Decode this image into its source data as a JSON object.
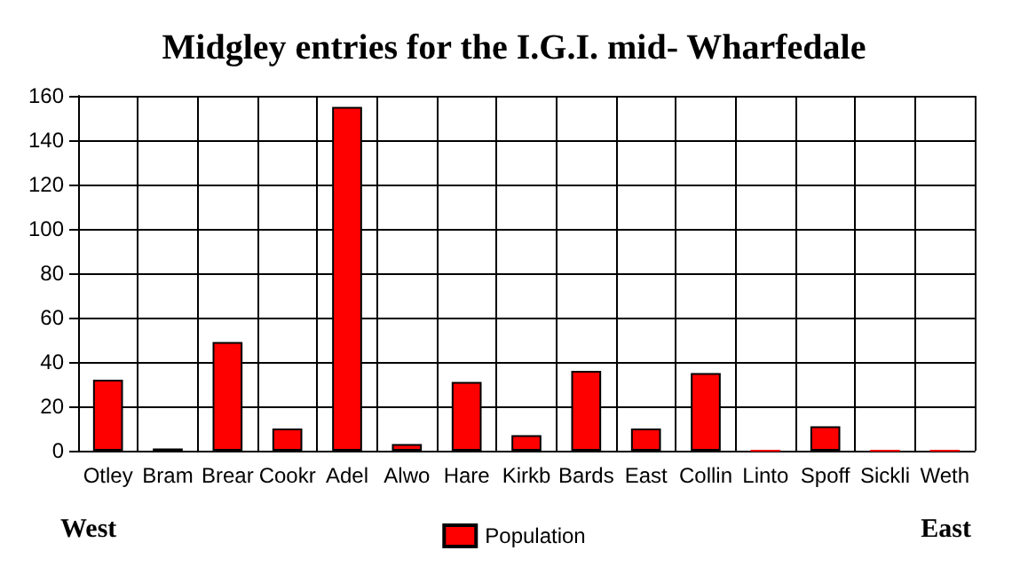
{
  "chart_data": {
    "type": "bar",
    "title": "Midgley entries for the I.G.I. mid- Wharfedale",
    "categories": [
      "Otley",
      "Bram",
      "Brear",
      "Cookr",
      "Adel",
      "Alwo",
      "Hare",
      "Kirkb",
      "Bards",
      "East",
      "Collin",
      "Linto",
      "Spoff",
      "Sickli",
      "Weth"
    ],
    "series": [
      {
        "name": "Population",
        "color": "#ff0000",
        "values": [
          32,
          1,
          49,
          10,
          155,
          3,
          31,
          7,
          36,
          10,
          35,
          0,
          11,
          0,
          0
        ]
      }
    ],
    "ylim": [
      0,
      160
    ],
    "yticks": [
      0,
      20,
      40,
      60,
      80,
      100,
      120,
      140,
      160
    ],
    "grid": true,
    "legend": "bottom",
    "annotations": [
      "West",
      "East"
    ]
  }
}
